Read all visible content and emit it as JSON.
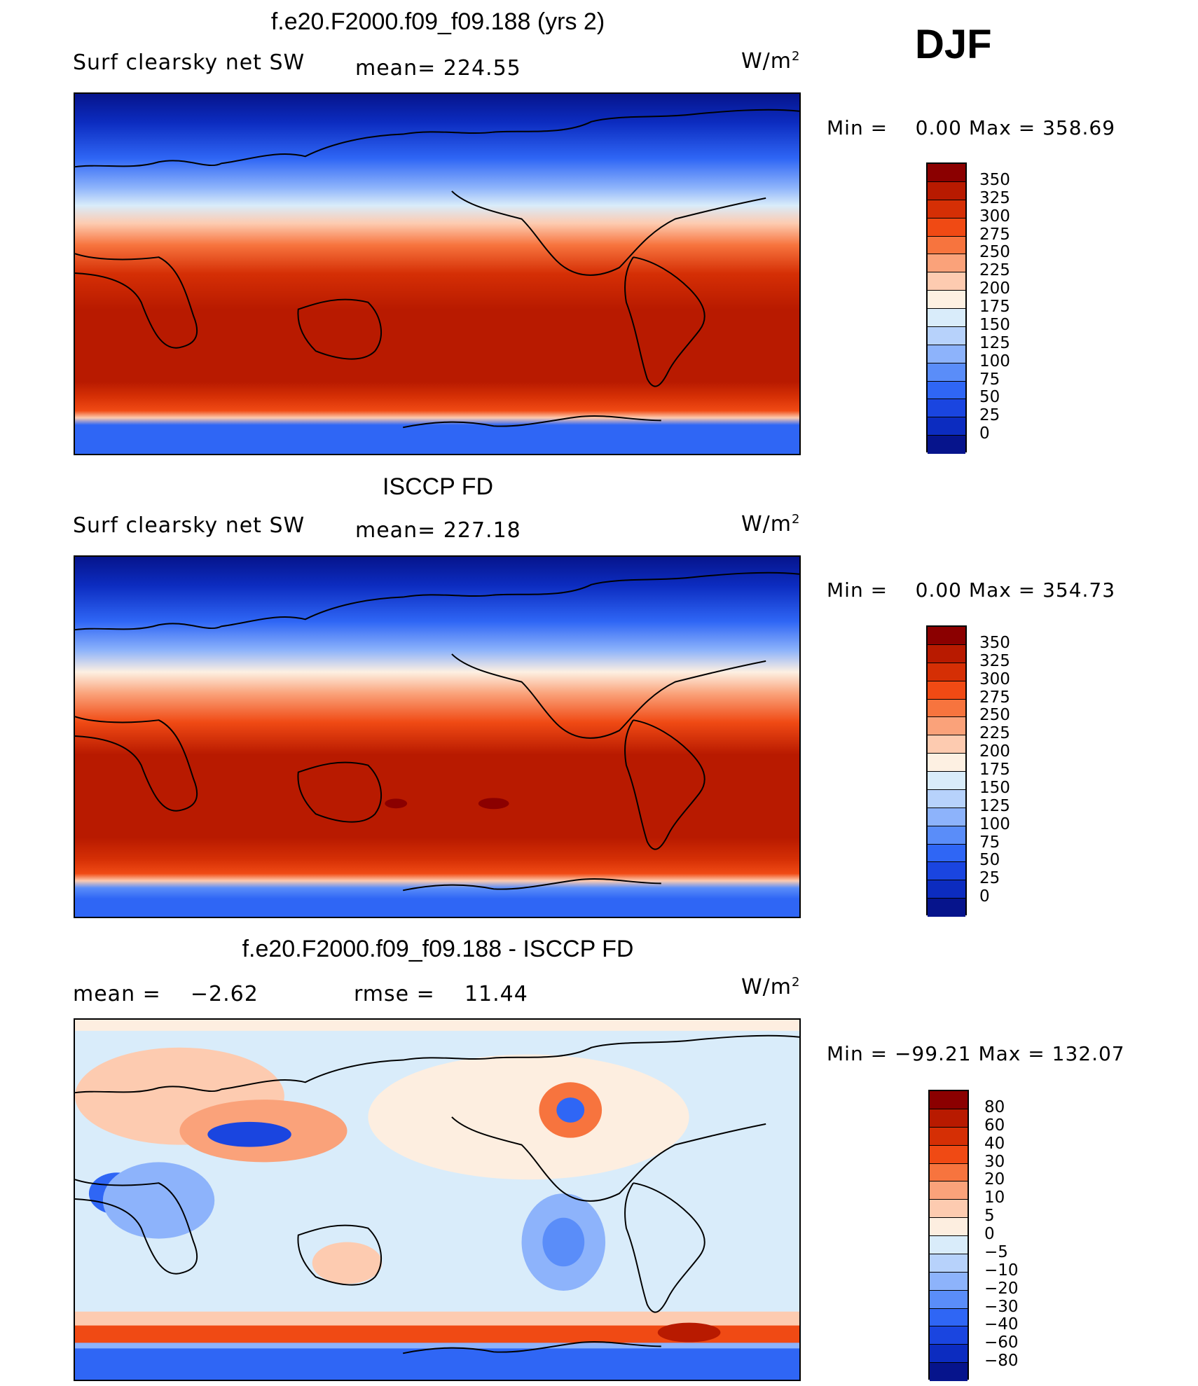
{
  "season": "DJF",
  "panels": [
    {
      "title": "f.e20.F2000.f09_f09.188 (yrs 2)",
      "left_label": "Surf clearsky net SW",
      "stat_label": "mean=",
      "stat_value": "224.55",
      "units": "W/m",
      "units_exp": "2",
      "min_label": "Min =",
      "min_value": "0.00",
      "max_label": "Max =",
      "max_value": "358.69",
      "colorbar_labels": [
        "350",
        "325",
        "300",
        "275",
        "250",
        "225",
        "200",
        "175",
        "150",
        "125",
        "100",
        "75",
        "50",
        "25",
        "0"
      ],
      "colors": [
        "#8b0000",
        "#b81a00",
        "#d52f05",
        "#f04a14",
        "#f7743e",
        "#faa27a",
        "#fdcbb0",
        "#fdf0e2",
        "#d9ecfa",
        "#b7d2fb",
        "#8db3fb",
        "#5a8df9",
        "#2f66f5",
        "#1a45e0",
        "#0c2cc0",
        "#06148c"
      ]
    },
    {
      "title": "ISCCP FD",
      "left_label": "Surf clearsky net SW",
      "stat_label": "mean=",
      "stat_value": "227.18",
      "units": "W/m",
      "units_exp": "2",
      "min_label": "Min =",
      "min_value": "0.00",
      "max_label": "Max =",
      "max_value": "354.73",
      "colorbar_labels": [
        "350",
        "325",
        "300",
        "275",
        "250",
        "225",
        "200",
        "175",
        "150",
        "125",
        "100",
        "75",
        "50",
        "25",
        "0"
      ],
      "colors": [
        "#8b0000",
        "#b81a00",
        "#d52f05",
        "#f04a14",
        "#f7743e",
        "#faa27a",
        "#fdcbb0",
        "#fdf0e2",
        "#d9ecfa",
        "#b7d2fb",
        "#8db3fb",
        "#5a8df9",
        "#2f66f5",
        "#1a45e0",
        "#0c2cc0",
        "#06148c"
      ]
    },
    {
      "title": "f.e20.F2000.f09_f09.188 - ISCCP FD",
      "left_label": "mean =",
      "left_value": "−2.62",
      "stat_label": "rmse =",
      "stat_value": "11.44",
      "units": "W/m",
      "units_exp": "2",
      "min_label": "Min =",
      "min_value": "−99.21",
      "max_label": "Max =",
      "max_value": "132.07",
      "colorbar_labels": [
        "80",
        "60",
        "40",
        "30",
        "20",
        "10",
        "5",
        "0",
        "−5",
        "−10",
        "−20",
        "−30",
        "−40",
        "−60",
        "−80"
      ],
      "colors": [
        "#8b0000",
        "#b81a00",
        "#d52f05",
        "#f04a14",
        "#f7743e",
        "#faa27a",
        "#fdcbb0",
        "#fdeee0",
        "#d9ecfa",
        "#b7d2fb",
        "#8db3fb",
        "#5a8df9",
        "#2f66f5",
        "#1a45e0",
        "#0c2cc0",
        "#06148c"
      ]
    }
  ]
}
